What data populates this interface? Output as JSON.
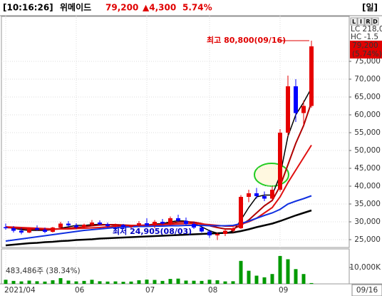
{
  "header": {
    "time": "[10:16:26]",
    "name": "위메이드",
    "price": "79,200",
    "change": "▲4,300",
    "rate": "5.74%",
    "period": "[일]"
  },
  "side": {
    "buttons": [
      "L",
      "I",
      "R",
      "D"
    ],
    "lc": "LC 218,0",
    "hc": "HC -1.5",
    "tag_price": "79,200",
    "tag_rate": "(5.74%)"
  },
  "chart_data": {
    "type": "candlestick",
    "categories": [
      "2021/04",
      null,
      null,
      null,
      null,
      null,
      null,
      null,
      null,
      "06",
      null,
      null,
      null,
      null,
      null,
      null,
      null,
      null,
      "07",
      null,
      null,
      null,
      null,
      null,
      null,
      null,
      "08",
      null,
      null,
      null,
      null,
      null,
      null,
      null,
      null,
      "09",
      null,
      null,
      null,
      null
    ],
    "cursor_date": "09/16",
    "open": [
      28500,
      28200,
      27500,
      27000,
      28200,
      27800,
      27200,
      28400,
      29500,
      29000,
      28500,
      29200,
      29800,
      29300,
      28800,
      29100,
      28600,
      28900,
      29600,
      29000,
      30000,
      29500,
      31000,
      30300,
      29400,
      28400,
      27300,
      26200,
      26600,
      27500,
      28200,
      37000,
      38000,
      37200,
      36500,
      39000,
      55000,
      68000,
      60500,
      62500
    ],
    "high": [
      29500,
      28800,
      28300,
      28500,
      29000,
      28400,
      28600,
      30000,
      30200,
      29600,
      29500,
      30500,
      30400,
      29800,
      29500,
      29400,
      29200,
      30200,
      31000,
      30500,
      30800,
      31500,
      32000,
      31200,
      30000,
      28800,
      27800,
      27000,
      28000,
      28500,
      37500,
      39000,
      39500,
      38500,
      40000,
      56000,
      71000,
      70000,
      64000,
      80800
    ],
    "low": [
      27800,
      27000,
      26500,
      26800,
      27500,
      26800,
      27000,
      28000,
      28600,
      28000,
      28200,
      28800,
      29000,
      28500,
      28300,
      28200,
      28000,
      28500,
      28800,
      28200,
      29200,
      29000,
      30000,
      29000,
      28000,
      27000,
      25500,
      24905,
      26000,
      27000,
      28000,
      35500,
      36500,
      35800,
      36000,
      38500,
      54000,
      58000,
      57000,
      62000
    ],
    "close": [
      28200,
      27500,
      27000,
      28200,
      27800,
      27200,
      28400,
      29500,
      29000,
      28500,
      29200,
      29800,
      29300,
      28800,
      29100,
      28600,
      28900,
      29600,
      29000,
      30000,
      29500,
      31000,
      30300,
      29400,
      28400,
      27300,
      26200,
      26600,
      27500,
      28200,
      37000,
      38000,
      37200,
      36500,
      39000,
      55000,
      68000,
      60500,
      62500,
      79200
    ],
    "up_color": "#e60000",
    "down_color": "#0000ff",
    "series": [
      {
        "color": "#000000",
        "width": 1.5,
        "values": [
          28600,
          28200,
          27800,
          27600,
          27600,
          27600,
          27800,
          28200,
          28600,
          29000,
          29000,
          29200,
          29300,
          29200,
          29000,
          28900,
          28800,
          29000,
          29100,
          29400,
          29500,
          30000,
          30300,
          30200,
          29600,
          28600,
          27500,
          26800,
          26800,
          27400,
          30500,
          34000,
          37000,
          37500,
          37500,
          43000,
          54000,
          60000,
          63500,
          67500
        ]
      },
      {
        "color": "#b00000",
        "width": 2,
        "values": [
          28400,
          28300,
          28100,
          28000,
          27900,
          27800,
          27900,
          28000,
          28200,
          28400,
          28600,
          28900,
          29100,
          29200,
          29200,
          29100,
          29000,
          29000,
          29100,
          29200,
          29300,
          29600,
          29900,
          30000,
          29900,
          29500,
          28900,
          28400,
          28000,
          28000,
          29000,
          30500,
          32500,
          34500,
          36000,
          40000,
          46000,
          52000,
          57000,
          63500
        ]
      },
      {
        "color": "#e01010",
        "width": 2,
        "values": [
          28600,
          28500,
          28400,
          28300,
          28200,
          28100,
          28000,
          28000,
          28000,
          28100,
          28200,
          28300,
          28400,
          28600,
          28700,
          28800,
          28900,
          29000,
          29000,
          29100,
          29200,
          29300,
          29400,
          29500,
          29500,
          29400,
          29200,
          29000,
          28800,
          28800,
          29300,
          30000,
          31000,
          32500,
          34000,
          37000,
          41000,
          44500,
          48000,
          51500
        ]
      },
      {
        "color": "#1030e0",
        "width": 2,
        "values": [
          24600,
          24900,
          25200,
          25500,
          25800,
          26100,
          26400,
          26700,
          27000,
          27300,
          27600,
          27800,
          28000,
          28200,
          28400,
          28500,
          28600,
          28700,
          28700,
          28800,
          28800,
          28900,
          28900,
          29000,
          29000,
          29000,
          28900,
          28900,
          28900,
          29000,
          29500,
          30200,
          31000,
          31800,
          32500,
          33500,
          35000,
          35800,
          36500,
          37300
        ]
      },
      {
        "color": "#000000",
        "width": 2.5,
        "values": [
          23400,
          23600,
          23800,
          24000,
          24100,
          24300,
          24400,
          24600,
          24700,
          24900,
          25000,
          25100,
          25300,
          25400,
          25500,
          25600,
          25700,
          25800,
          25900,
          26000,
          26100,
          26200,
          26300,
          26400,
          26500,
          26600,
          26700,
          26800,
          26900,
          27000,
          27400,
          27900,
          28500,
          29000,
          29500,
          30200,
          31000,
          31800,
          32500,
          33200
        ]
      }
    ],
    "ylim": [
      23000,
      87800
    ],
    "yticks": [
      {
        "value": 25000,
        "label": "25,000"
      },
      {
        "value": 30000,
        "label": "30,000"
      },
      {
        "value": 35000,
        "label": "35,000"
      },
      {
        "value": 40000,
        "label": "40,000"
      },
      {
        "value": 45000,
        "label": "45,000"
      },
      {
        "value": 50000,
        "label": "50,000"
      },
      {
        "value": 55000,
        "label": "55,000"
      },
      {
        "value": 60000,
        "label": "60,000"
      },
      {
        "value": 65000,
        "label": "65,000"
      },
      {
        "value": 70000,
        "label": "70,000"
      },
      {
        "value": 75000,
        "label": "75,000"
      }
    ],
    "grid": true,
    "annotations": {
      "high": "최고 80,800(09/16)",
      "low": "최저 24,905(08/03)"
    },
    "volume": {
      "label": "483,486주 (38.34%)",
      "color": "#009a00",
      "values": [
        2500,
        1800,
        1500,
        2000,
        1600,
        1400,
        2200,
        3500,
        2000,
        1500,
        1800,
        2500,
        1600,
        1400,
        1500,
        1300,
        1400,
        2200,
        2600,
        2400,
        1800,
        3000,
        3200,
        2000,
        1900,
        1800,
        2500,
        2200,
        1500,
        1600,
        14000,
        8000,
        5000,
        4000,
        6000,
        17000,
        15000,
        9000,
        6000,
        483
      ],
      "ylim": [
        0,
        20000
      ],
      "yticks": [
        {
          "value": 10000,
          "label": "10,000K"
        }
      ]
    }
  }
}
